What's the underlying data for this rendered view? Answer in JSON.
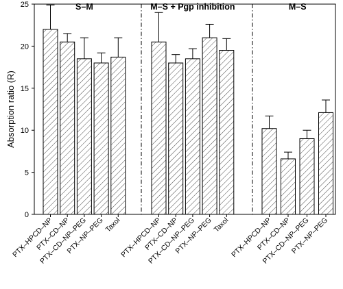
{
  "chart_data": {
    "type": "bar",
    "ylabel": "Absorption ratio (R)",
    "ylim": [
      0,
      25
    ],
    "yticks": [
      0,
      5,
      10,
      15,
      20,
      25
    ],
    "grid": false,
    "bar_pattern": "diagonal-hatch",
    "groups": [
      {
        "title": "S–M",
        "categories": [
          "PTX–HPCD–NP",
          "PTX–CD–NP",
          "PTX–CD–NP–PEG",
          "PTX–NP–PEG",
          "Taxol"
        ],
        "values": [
          22.0,
          20.5,
          18.5,
          18.0,
          18.7
        ],
        "errors": [
          2.9,
          1.0,
          2.5,
          1.2,
          2.3
        ]
      },
      {
        "title": "M–S + Pgp inhibition",
        "categories": [
          "PTX–HPCD–NP",
          "PTX–CD–NP",
          "PTX–CD–NP–PEG",
          "PTX–NP–PEG",
          "Taxol"
        ],
        "values": [
          20.5,
          18.0,
          18.5,
          21.0,
          19.5
        ],
        "errors": [
          3.5,
          1.0,
          1.2,
          1.6,
          1.4
        ]
      },
      {
        "title": "M–S",
        "categories": [
          "PTX–HPCD–NP",
          "PTX–CD–NP",
          "PTX–CD–NP–PEG",
          "PTX–NP–PEG"
        ],
        "values": [
          10.2,
          6.6,
          9.0,
          12.1
        ],
        "errors": [
          1.5,
          0.8,
          1.0,
          1.5
        ]
      }
    ]
  }
}
